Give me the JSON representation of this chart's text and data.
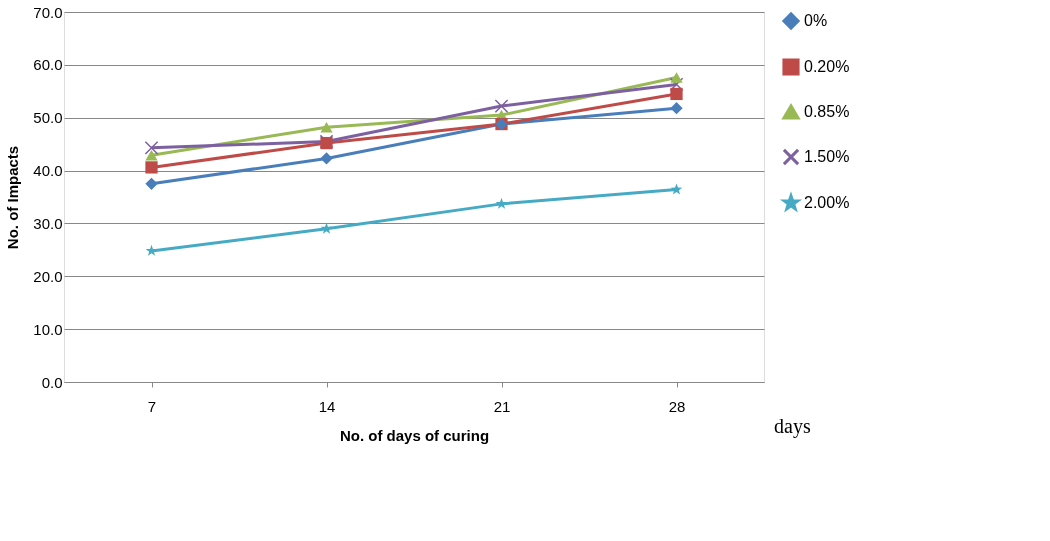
{
  "chart_data": {
    "type": "line",
    "xlabel": "No. of days of curing",
    "ylabel": "No. of Impacts",
    "categories": [
      "7",
      "14",
      "21",
      "28"
    ],
    "series": [
      {
        "name": "0%",
        "color": "#4a7ebb",
        "marker": "diamond",
        "values": [
          37.5,
          42.3,
          48.8,
          51.8
        ]
      },
      {
        "name": "0.20%",
        "color": "#be4b48",
        "marker": "square",
        "values": [
          40.6,
          45.2,
          48.8,
          54.5
        ]
      },
      {
        "name": "0.85%",
        "color": "#98b954",
        "marker": "triangle",
        "values": [
          42.9,
          48.2,
          50.5,
          57.6
        ]
      },
      {
        "name": "1.50%",
        "color": "#7d60a0",
        "marker": "cross",
        "values": [
          44.3,
          45.5,
          52.2,
          56.3
        ]
      },
      {
        "name": "2.00%",
        "color": "#46aac5",
        "marker": "star",
        "values": [
          24.8,
          29.0,
          33.7,
          36.4
        ]
      }
    ],
    "ylim": [
      0,
      70
    ],
    "yticks": [
      {
        "value": 0,
        "label": "0.0"
      },
      {
        "value": 10,
        "label": "10.0"
      },
      {
        "value": 20,
        "label": "20.0"
      },
      {
        "value": 30,
        "label": "30.0"
      },
      {
        "value": 40,
        "label": "40.0"
      },
      {
        "value": 50,
        "label": "50.0"
      },
      {
        "value": 60,
        "label": "60.0"
      },
      {
        "value": 70,
        "label": "70.0"
      }
    ],
    "grid": "y",
    "legend": "right",
    "annotations": [
      "days"
    ]
  }
}
